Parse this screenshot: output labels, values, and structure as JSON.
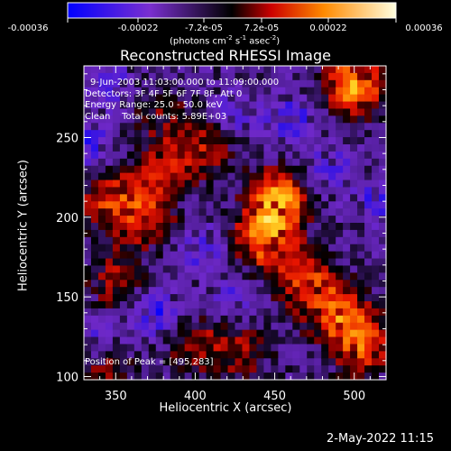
{
  "colorbar": {
    "ticks": [
      "-0.00036",
      "-0.00022",
      "-7.2e-05",
      "7.2e-05",
      "0.00022",
      "0.00036"
    ],
    "unit_prefix": "(photons cm",
    "unit_exp1": "-2",
    "unit_mid": " s",
    "unit_exp2": "-1",
    "unit_mid2": " asec",
    "unit_exp3": "-2",
    "unit_suffix": ")"
  },
  "chart_data": {
    "type": "heatmap",
    "title": "Reconstructed RHESSI Image",
    "xlabel": "Heliocentric X (arcsec)",
    "ylabel": "Heliocentric Y (arcsec)",
    "x_ticks": [
      350,
      400,
      450,
      500
    ],
    "y_ticks": [
      100,
      150,
      200,
      250
    ],
    "xlim": [
      330,
      520
    ],
    "ylim": [
      98,
      295
    ],
    "color_range": [
      -0.00036,
      0.00036
    ],
    "peak": {
      "x": 495,
      "y": 283
    },
    "bright_regions": [
      {
        "x": 500,
        "y": 283,
        "level": 1.0
      },
      {
        "x": 452,
        "y": 210,
        "level": 0.95
      },
      {
        "x": 442,
        "y": 185,
        "level": 0.75
      },
      {
        "x": 470,
        "y": 160,
        "level": 0.6
      },
      {
        "x": 490,
        "y": 140,
        "level": 0.65
      },
      {
        "x": 505,
        "y": 120,
        "level": 0.7
      },
      {
        "x": 345,
        "y": 210,
        "level": 0.6
      },
      {
        "x": 370,
        "y": 200,
        "level": 0.55
      },
      {
        "x": 378,
        "y": 232,
        "level": 0.45
      },
      {
        "x": 405,
        "y": 245,
        "level": 0.5
      },
      {
        "x": 350,
        "y": 160,
        "level": 0.45
      },
      {
        "x": 345,
        "y": 105,
        "level": 0.4
      },
      {
        "x": 400,
        "y": 120,
        "level": 0.45
      },
      {
        "x": 430,
        "y": 115,
        "level": 0.4
      },
      {
        "x": 375,
        "y": 270,
        "level": 0.3
      }
    ],
    "dark_regions": [
      {
        "x": 460,
        "y": 262,
        "level": -0.6
      },
      {
        "x": 375,
        "y": 140,
        "level": -0.6
      },
      {
        "x": 335,
        "y": 245,
        "level": -0.5
      },
      {
        "x": 350,
        "y": 280,
        "level": -0.45
      },
      {
        "x": 405,
        "y": 180,
        "level": -0.45
      },
      {
        "x": 485,
        "y": 230,
        "level": -0.4
      },
      {
        "x": 425,
        "y": 265,
        "level": -0.4
      },
      {
        "x": 425,
        "y": 150,
        "level": -0.35
      },
      {
        "x": 515,
        "y": 210,
        "level": -0.45
      },
      {
        "x": 340,
        "y": 125,
        "level": -0.4
      }
    ]
  },
  "info": {
    "time_range": "9-Jun-2003 11:03:00.000 to 11:09:00.000",
    "detectors": "Detectors: 3F 4F 5F 6F 7F 8F, Att 0",
    "energy": "Energy Range: 25.0 - 50.0 keV",
    "clean": "Clean    Total counts: 5.89E+03",
    "peak": "Position of Peak = [495,283]"
  },
  "timestamp": "2-May-2022 11:15"
}
